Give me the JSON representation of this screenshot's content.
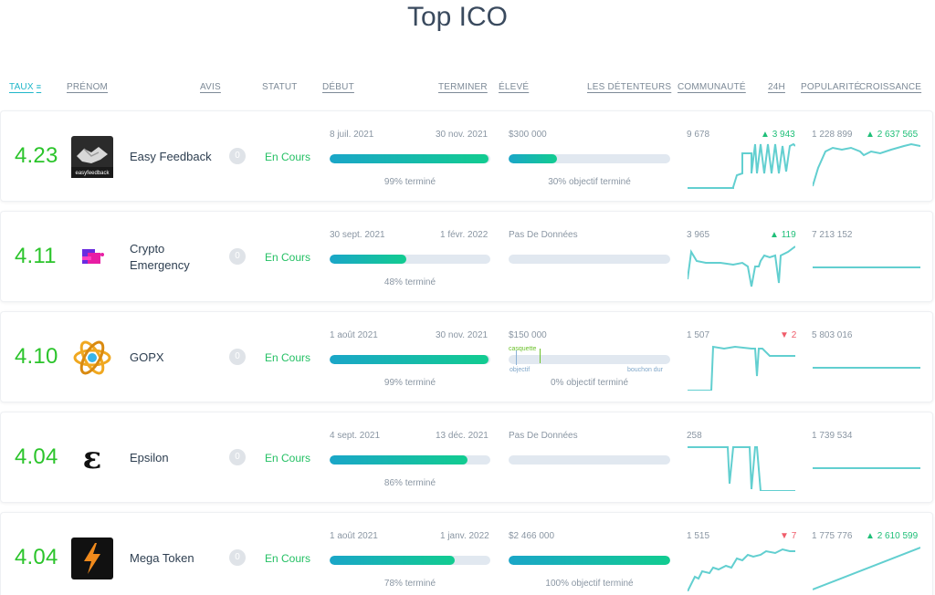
{
  "page": {
    "title": "Top ICO"
  },
  "headers": {
    "rate": "TAUX",
    "rate_icon": "filter-icon",
    "name": "PRÉNOM",
    "reviews": "AVIS",
    "status": "STATUT",
    "start": "DÉBUT",
    "end": "TERMINER",
    "raised": "ÉLEVÉ",
    "holders": "LES DÉTENTEURS",
    "community": "COMMUNAUTÉ",
    "h24": "24H",
    "popularity": "POPULARITÉ",
    "growth": "CROISSANCE"
  },
  "colors": {
    "rate": "#2bc42b",
    "status": "#24c064",
    "accent": "#1fb6c9",
    "up": "#1fbf78",
    "down": "#f05c6a",
    "spark": "#62cfd0"
  },
  "rows": [
    {
      "rate": "4.23",
      "logo": "easy-feedback-logo",
      "logo_text": "easyfeedback",
      "name": "Easy Feedback",
      "avis": "0",
      "status": "En Cours",
      "start": "8 juil. 2021",
      "end": "30 nov. 2021",
      "progress": 0.99,
      "progress_label": "99% terminé",
      "raised": "$300 000",
      "raised_fill": 0.3,
      "raised_label": "30% objectif terminé",
      "community": "9 678",
      "community_delta": "3 943",
      "community_dir": "up",
      "popularity": "1 228 899",
      "growth": "2 637 565",
      "growth_dir": "up"
    },
    {
      "rate": "4.11",
      "logo": "crypto-emergency-logo",
      "name": "Crypto Emergency",
      "avis": "0",
      "status": "En Cours",
      "start": "30 sept. 2021",
      "end": "1 févr. 2022",
      "progress": 0.48,
      "progress_label": "48% terminé",
      "raised": "Pas De Données",
      "raised_fill": 0,
      "raised_label": "",
      "community": "3 965",
      "community_delta": "119",
      "community_dir": "up",
      "popularity": "7 213 152",
      "growth": "",
      "growth_dir": ""
    },
    {
      "rate": "4.10",
      "logo": "gopx-logo",
      "name": "GOPX",
      "avis": "0",
      "status": "En Cours",
      "start": "1 août 2021",
      "end": "30 nov. 2021",
      "progress": 0.99,
      "progress_label": "99% terminé",
      "raised": "$150 000",
      "raised_fill": 0,
      "raised_label": "0% objectif terminé",
      "raised_marks": {
        "cap": "casquette",
        "goal": "objectif",
        "hard_cap": "bouchon dur"
      },
      "community": "1 507",
      "community_delta": "2",
      "community_dir": "down",
      "popularity": "5 803 016",
      "growth": "",
      "growth_dir": ""
    },
    {
      "rate": "4.04",
      "logo": "epsilon-logo",
      "logo_text": "ε",
      "name": "Epsilon",
      "avis": "0",
      "status": "En Cours",
      "start": "4 sept. 2021",
      "end": "13 déc. 2021",
      "progress": 0.86,
      "progress_label": "86% terminé",
      "raised": "Pas De Données",
      "raised_fill": 0,
      "raised_label": "",
      "community": "258",
      "community_delta": "",
      "community_dir": "",
      "popularity": "1 739 534",
      "growth": "",
      "growth_dir": ""
    },
    {
      "rate": "4.04",
      "logo": "mega-token-logo",
      "name": "Mega Token",
      "avis": "0",
      "status": "En Cours",
      "start": "1 août 2021",
      "end": "1 janv. 2022",
      "progress": 0.78,
      "progress_label": "78% terminé",
      "raised": "$2 466 000",
      "raised_fill": 1.0,
      "raised_label": "100% objectif terminé",
      "community": "1 515",
      "community_delta": "7",
      "community_dir": "down",
      "popularity": "1 775 776",
      "growth": "2 610 599",
      "growth_dir": "up"
    }
  ]
}
